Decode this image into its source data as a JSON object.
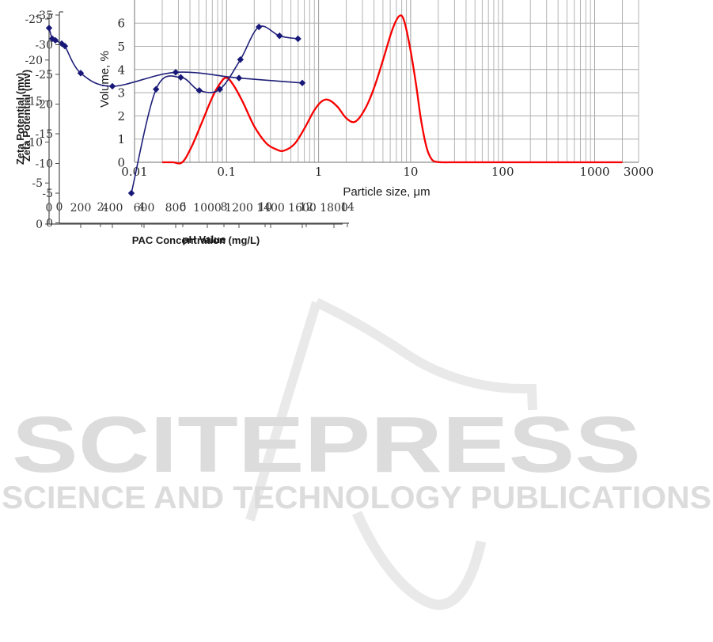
{
  "page": {
    "background": "#FFFFFF"
  },
  "watermark": {
    "title": "SCITEPRESS",
    "subtitle": "SCIENCE AND TECHNOLOGY PUBLICATIONS",
    "text_color": "#DCDCDC",
    "logo_color": "#E9E9E9"
  },
  "chart_data": [
    {
      "id": "particle-size",
      "type": "line",
      "title": "",
      "xlabel": "Particle size, μm",
      "ylabel": "Volume, %",
      "x_scale": "log",
      "xlim": [
        0.01,
        3000
      ],
      "ylim": [
        0,
        7.05
      ],
      "grid": true,
      "legend": "none",
      "x_ticks": [
        0.01,
        0.1,
        1,
        10,
        100,
        1000,
        3000
      ],
      "x_tick_labels": [
        "0.01",
        "0.1",
        "1",
        "10",
        "100",
        "1000",
        "3000"
      ],
      "y_ticks": [
        0,
        1,
        2,
        3,
        4,
        5,
        6
      ],
      "line_color": "#F80000",
      "series": [
        {
          "name": "volume-distribution",
          "x": [
            0.02,
            0.026,
            0.033,
            0.042,
            0.055,
            0.07,
            0.085,
            0.1,
            0.12,
            0.15,
            0.2,
            0.27,
            0.35,
            0.42,
            0.55,
            0.7,
            0.9,
            1.1,
            1.3,
            1.6,
            2.0,
            2.5,
            3.2,
            4,
            5,
            6.3,
            7.5,
            8.5,
            10,
            11.5,
            13,
            15,
            17,
            19,
            22,
            30,
            60,
            150,
            400,
            1000,
            2000
          ],
          "y": [
            0,
            0,
            0,
            0.7,
            1.8,
            2.8,
            3.4,
            3.65,
            3.3,
            2.6,
            1.55,
            0.82,
            0.55,
            0.5,
            0.8,
            1.45,
            2.25,
            2.65,
            2.68,
            2.4,
            1.9,
            1.75,
            2.3,
            3.2,
            4.4,
            5.7,
            6.3,
            6.1,
            4.8,
            3.3,
            1.8,
            0.6,
            0.12,
            0.02,
            0,
            0,
            0,
            0,
            0,
            0,
            0
          ]
        }
      ]
    },
    {
      "id": "zeta-vs-pac",
      "type": "line",
      "title": "",
      "xlabel": "PAC Concentration (mg/L)",
      "ylabel": "Zeta Potential (mv)",
      "xlim": [
        0,
        1800
      ],
      "ylim": [
        -25,
        0
      ],
      "y_inverted": true,
      "grid": false,
      "legend": "none",
      "x_ticks": [
        0,
        200,
        400,
        600,
        800,
        1000,
        1200,
        1400,
        1600,
        1800
      ],
      "y_ticks": [
        -25,
        -20,
        -15,
        -10,
        -5,
        0
      ],
      "line_color": "#1F1F7A",
      "marker": "diamond",
      "series": [
        {
          "name": "zeta-potential-vs-pac",
          "x": [
            0,
            20,
            40,
            80,
            100,
            200,
            400,
            800,
            1200,
            1600
          ],
          "y": [
            -23.9,
            -22.6,
            -22.4,
            -22.0,
            -21.7,
            -18.4,
            -16.8,
            -18.5,
            -17.8,
            -17.2
          ]
        }
      ]
    },
    {
      "id": "zeta-vs-ph",
      "type": "line",
      "title": "",
      "xlabel": "pH Value",
      "ylabel": "Zeta Potential (mv)",
      "xlim": [
        0,
        14
      ],
      "ylim": [
        -35,
        0
      ],
      "y_inverted": true,
      "grid": false,
      "legend": "none",
      "x_ticks": [
        0,
        2,
        4,
        6,
        8,
        10,
        12,
        14
      ],
      "y_ticks": [
        -35,
        -30,
        -25,
        -20,
        -15,
        -10,
        -5,
        0
      ],
      "line_color": "#1F1F7A",
      "marker": "diamond",
      "series": [
        {
          "name": "zeta-potential-vs-ph",
          "x": [
            3.5,
            4.7,
            5.9,
            6.8,
            7.8,
            8.8,
            9.7,
            10.7,
            11.6
          ],
          "y": [
            -5,
            -22.5,
            -24.5,
            -22.3,
            -22.5,
            -27.5,
            -33,
            -31.5,
            -31
          ]
        }
      ]
    }
  ]
}
